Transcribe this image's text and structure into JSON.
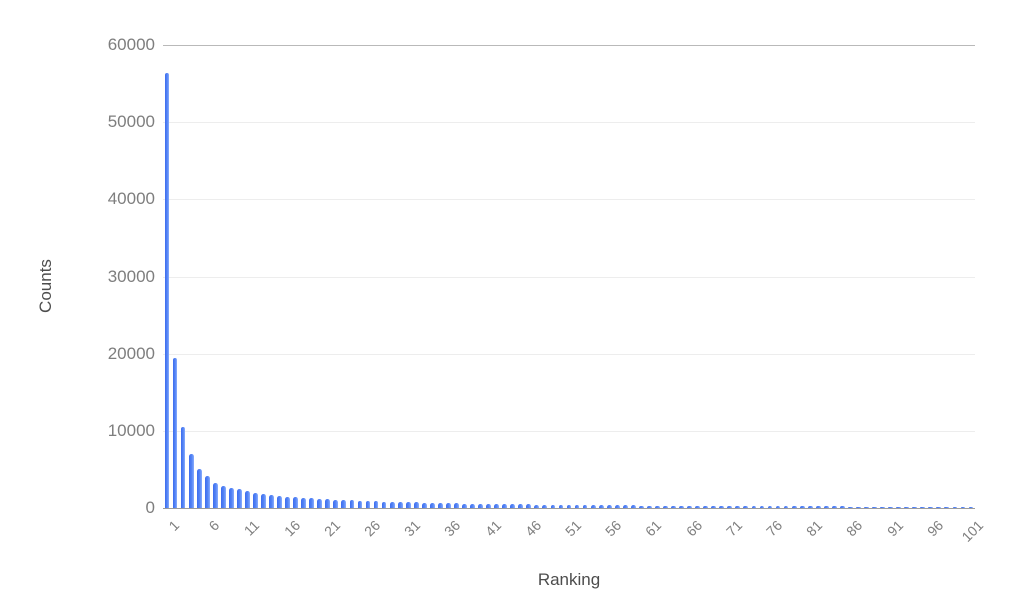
{
  "chart_data": {
    "type": "bar",
    "title": "",
    "xlabel": "Ranking",
    "ylabel": "Counts",
    "bar_color": "#4b79f2",
    "grid": true,
    "legend": "none",
    "xlim": [
      1,
      101
    ],
    "ylim": [
      0,
      60000
    ],
    "x_tick_labels": [
      "1",
      "6",
      "11",
      "16",
      "21",
      "26",
      "31",
      "36",
      "41",
      "46",
      "51",
      "56",
      "61",
      "66",
      "71",
      "76",
      "81",
      "86",
      "91",
      "96",
      "101"
    ],
    "y_tick_labels": [
      "0",
      "10000",
      "20000",
      "30000",
      "40000",
      "50000",
      "60000"
    ],
    "y_tick_values": [
      0,
      10000,
      20000,
      30000,
      40000,
      50000,
      60000
    ],
    "x": [
      1,
      2,
      3,
      4,
      5,
      6,
      7,
      8,
      9,
      10,
      11,
      12,
      13,
      14,
      15,
      16,
      17,
      18,
      19,
      20,
      21,
      22,
      23,
      24,
      25,
      26,
      27,
      28,
      29,
      30,
      31,
      32,
      33,
      34,
      35,
      36,
      37,
      38,
      39,
      40,
      41,
      42,
      43,
      44,
      45,
      46,
      47,
      48,
      49,
      50,
      51,
      52,
      53,
      54,
      55,
      56,
      57,
      58,
      59,
      60,
      61,
      62,
      63,
      64,
      65,
      66,
      67,
      68,
      69,
      70,
      71,
      72,
      73,
      74,
      75,
      76,
      77,
      78,
      79,
      80,
      81,
      82,
      83,
      84,
      85,
      86,
      87,
      88,
      89,
      90,
      91,
      92,
      93,
      94,
      95,
      96,
      97,
      98,
      99,
      100,
      101
    ],
    "values": [
      56400,
      19500,
      10500,
      7000,
      5100,
      4150,
      3300,
      2900,
      2600,
      2450,
      2150,
      1970,
      1820,
      1700,
      1590,
      1490,
      1400,
      1330,
      1260,
      1200,
      1140,
      1080,
      1030,
      985,
      945,
      905,
      870,
      840,
      805,
      775,
      750,
      720,
      695,
      670,
      650,
      625,
      605,
      585,
      565,
      550,
      530,
      515,
      500,
      485,
      470,
      460,
      445,
      435,
      420,
      410,
      400,
      390,
      380,
      370,
      362,
      353,
      345,
      337,
      330,
      322,
      315,
      308,
      302,
      295,
      289,
      283,
      277,
      272,
      266,
      261,
      256,
      251,
      246,
      241,
      237,
      232,
      228,
      224,
      220,
      216,
      212,
      208,
      205,
      201,
      198,
      194,
      191,
      188,
      185,
      182,
      179,
      176,
      173,
      170,
      167,
      165,
      162,
      159,
      157,
      154,
      152
    ]
  }
}
